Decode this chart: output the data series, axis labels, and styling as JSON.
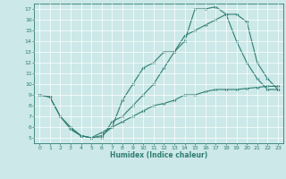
{
  "xlabel": "Humidex (Indice chaleur)",
  "xlim": [
    -0.5,
    23.5
  ],
  "ylim": [
    4.5,
    17.5
  ],
  "xticks": [
    0,
    1,
    2,
    3,
    4,
    5,
    6,
    7,
    8,
    9,
    10,
    11,
    12,
    13,
    14,
    15,
    16,
    17,
    18,
    19,
    20,
    21,
    22,
    23
  ],
  "yticks": [
    5,
    6,
    7,
    8,
    9,
    10,
    11,
    12,
    13,
    14,
    15,
    16,
    17
  ],
  "bg_color": "#cce8e8",
  "line_color": "#2e7d72",
  "line1_x": [
    0,
    1,
    2,
    3,
    4,
    5,
    6,
    7,
    8,
    9,
    10,
    11,
    12,
    13,
    14,
    15,
    16,
    17,
    18,
    19,
    20,
    21,
    22,
    23
  ],
  "line1_y": [
    9.0,
    8.8,
    7.0,
    6.0,
    5.2,
    5.0,
    5.0,
    6.5,
    7.0,
    8.0,
    9.0,
    10.0,
    11.5,
    13.0,
    14.5,
    15.0,
    15.5,
    16.0,
    16.5,
    16.5,
    15.8,
    12.0,
    10.5,
    9.5
  ],
  "line2_x": [
    0,
    1,
    2,
    3,
    4,
    5,
    6,
    7,
    8,
    9,
    10,
    11,
    12,
    13,
    14,
    15,
    16,
    17,
    18,
    19,
    20,
    21,
    22,
    23
  ],
  "line2_y": [
    9.0,
    8.8,
    7.0,
    5.8,
    5.2,
    5.0,
    5.2,
    6.0,
    8.5,
    10.0,
    11.5,
    12.0,
    13.0,
    13.0,
    14.0,
    17.0,
    17.0,
    17.2,
    16.5,
    14.0,
    12.0,
    10.5,
    9.5,
    9.5
  ],
  "line3_x": [
    3,
    4,
    5,
    6,
    7,
    8,
    9,
    10,
    11,
    12,
    13,
    14,
    15,
    16,
    17,
    18,
    19,
    20,
    21,
    22,
    23
  ],
  "line3_y": [
    5.8,
    5.2,
    5.0,
    5.5,
    6.0,
    6.5,
    7.0,
    7.5,
    8.0,
    8.2,
    8.5,
    9.0,
    9.0,
    9.3,
    9.5,
    9.5,
    9.5,
    9.6,
    9.7,
    9.8,
    9.8
  ],
  "markersize": 2.0,
  "linewidth": 0.8
}
